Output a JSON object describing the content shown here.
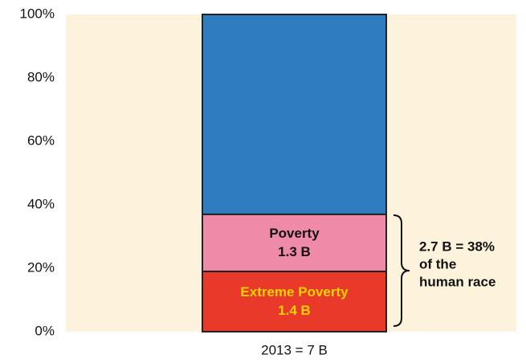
{
  "chart_data": {
    "type": "stacked_bar",
    "categories": [
      "2013 = 7 B"
    ],
    "series": [
      {
        "name": "Extreme Poverty",
        "amount": "1.4 B",
        "color": "#e8392a",
        "label_color": "#ffd200",
        "values": [
          19
        ]
      },
      {
        "name": "Poverty",
        "amount": "1.3 B",
        "color": "#ef8aa8",
        "label_color": "#111111",
        "values": [
          18
        ]
      },
      {
        "color": "#2f7cc0",
        "values": [
          63
        ]
      }
    ],
    "ylim": [
      0,
      100
    ],
    "yticks": [
      {
        "value": 0,
        "label": "0%"
      },
      {
        "value": 20,
        "label": "20%"
      },
      {
        "value": 40,
        "label": "40%"
      },
      {
        "value": 60,
        "label": "60%"
      },
      {
        "value": 80,
        "label": "80%"
      },
      {
        "value": 100,
        "label": "100%"
      }
    ],
    "background": "#fdf3dc",
    "annotation": [
      "2.7 B = 38%",
      "of the",
      "human race"
    ]
  }
}
